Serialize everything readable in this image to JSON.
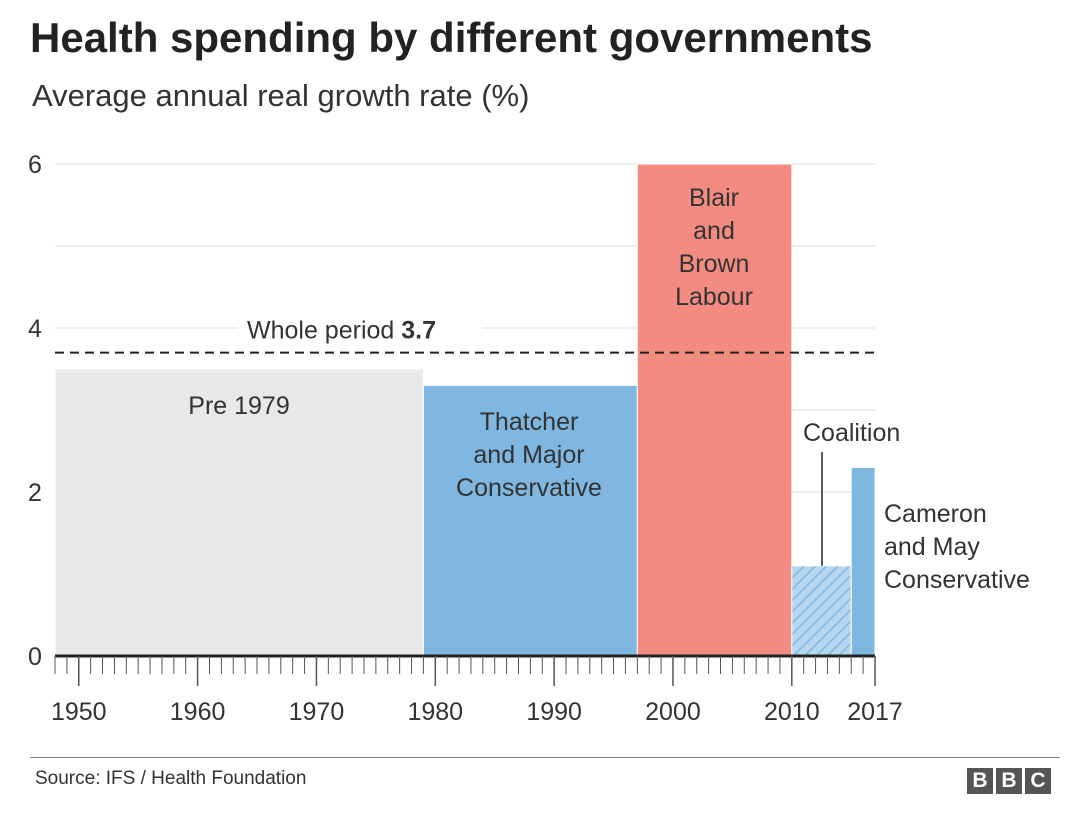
{
  "title": "Health spending by different governments",
  "subtitle": "Average annual real growth rate (%)",
  "source": "Source: IFS / Health Foundation",
  "logo": [
    "B",
    "B",
    "C"
  ],
  "colors": {
    "pre1979": "#e8e8e8",
    "conservative": "#7fb7e0",
    "labour": "#f28b82",
    "grid": "#dddddd",
    "text": "#333333"
  },
  "chart_data": {
    "type": "bar",
    "title": "Health spending by different governments",
    "subtitle": "Average annual real growth rate (%)",
    "xlabel": "",
    "ylabel": "",
    "xlim": [
      1948,
      2017
    ],
    "ylim": [
      0,
      6
    ],
    "yticks": [
      0,
      2,
      4,
      6
    ],
    "xticks": [
      1950,
      1960,
      1970,
      1980,
      1990,
      2000,
      2010,
      2017
    ],
    "grid": true,
    "bars": [
      {
        "name": "Pre 1979",
        "label_lines": [
          "Pre 1979"
        ],
        "start": 1948,
        "end": 1979,
        "value": 3.5,
        "color": "#e8e8e8",
        "label_color": "#333333"
      },
      {
        "name": "Thatcher and Major Conservative",
        "label_lines": [
          "Thatcher",
          "and Major",
          "Conservative"
        ],
        "start": 1979,
        "end": 1997,
        "value": 3.3,
        "color": "#7fb7e0",
        "label_color": "#333333"
      },
      {
        "name": "Blair and Brown Labour",
        "label_lines": [
          "Blair",
          "and",
          "Brown",
          "Labour"
        ],
        "start": 1997,
        "end": 2010,
        "value": 6.0,
        "color": "#f28b82",
        "label_color": "#333333"
      },
      {
        "name": "Coalition",
        "label_lines": [
          "Coalition"
        ],
        "start": 2010,
        "end": 2015,
        "value": 1.1,
        "color": "#b7d7ee",
        "hatched": true,
        "label_color": "#333333"
      },
      {
        "name": "Cameron and May Conservative",
        "label_lines": [
          "Cameron",
          "and May",
          "Conservative"
        ],
        "start": 2015,
        "end": 2017,
        "value": 2.3,
        "color": "#7fb7e0",
        "label_color": "#333333"
      }
    ],
    "reference_line": {
      "label": "Whole period",
      "value_label": "3.7",
      "value": 3.7
    }
  }
}
